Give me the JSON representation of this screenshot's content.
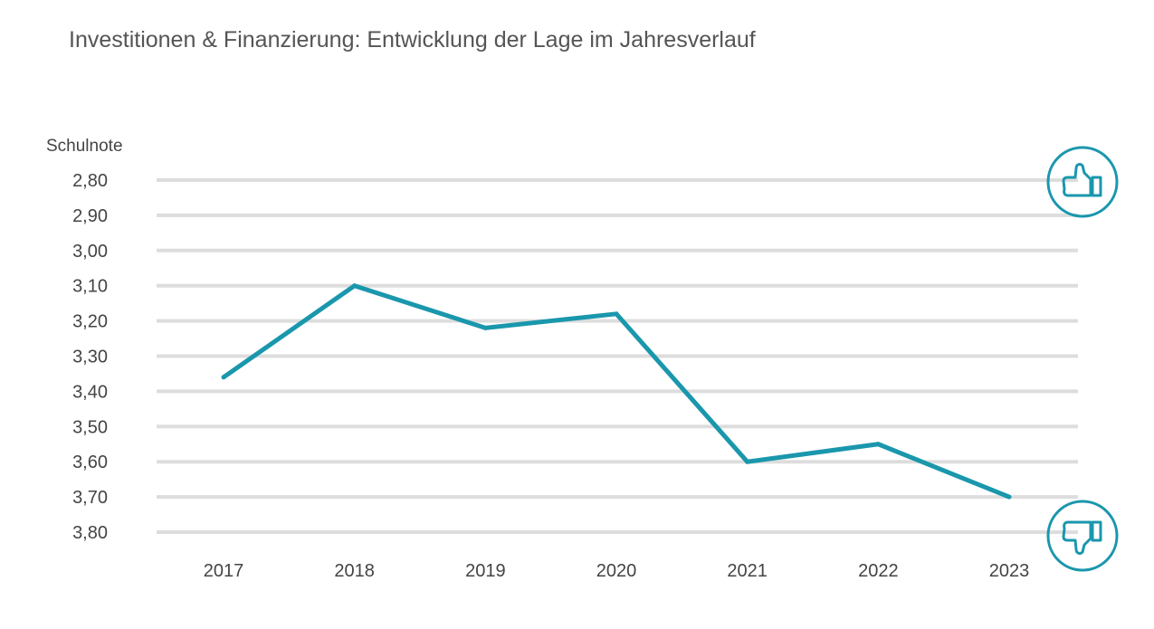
{
  "chart_data": {
    "type": "line",
    "title": "Investitionen & Finanzierung: Entwicklung der Lage im Jahresverlauf",
    "ylabel": "Schulnote",
    "xlabel": "",
    "categories": [
      "2017",
      "2018",
      "2019",
      "2020",
      "2021",
      "2022",
      "2023"
    ],
    "series": [
      {
        "values": [
          3.36,
          3.1,
          3.22,
          3.18,
          3.6,
          3.55,
          3.7
        ]
      }
    ],
    "yticks": [
      2.8,
      2.9,
      3.0,
      3.1,
      3.2,
      3.3,
      3.4,
      3.5,
      3.6,
      3.7,
      3.8
    ],
    "ytick_labels": [
      "2,80",
      "2,90",
      "3,00",
      "3,10",
      "3,20",
      "3,30",
      "3,40",
      "3,50",
      "3,60",
      "3,70",
      "3,80"
    ],
    "ylim": [
      2.8,
      3.8
    ],
    "y_inverted": true,
    "grid": true,
    "line_color": "#1a97ad",
    "grid_color": "#dddddd",
    "icons": [
      "thumbs-up-icon",
      "thumbs-down-icon"
    ]
  }
}
